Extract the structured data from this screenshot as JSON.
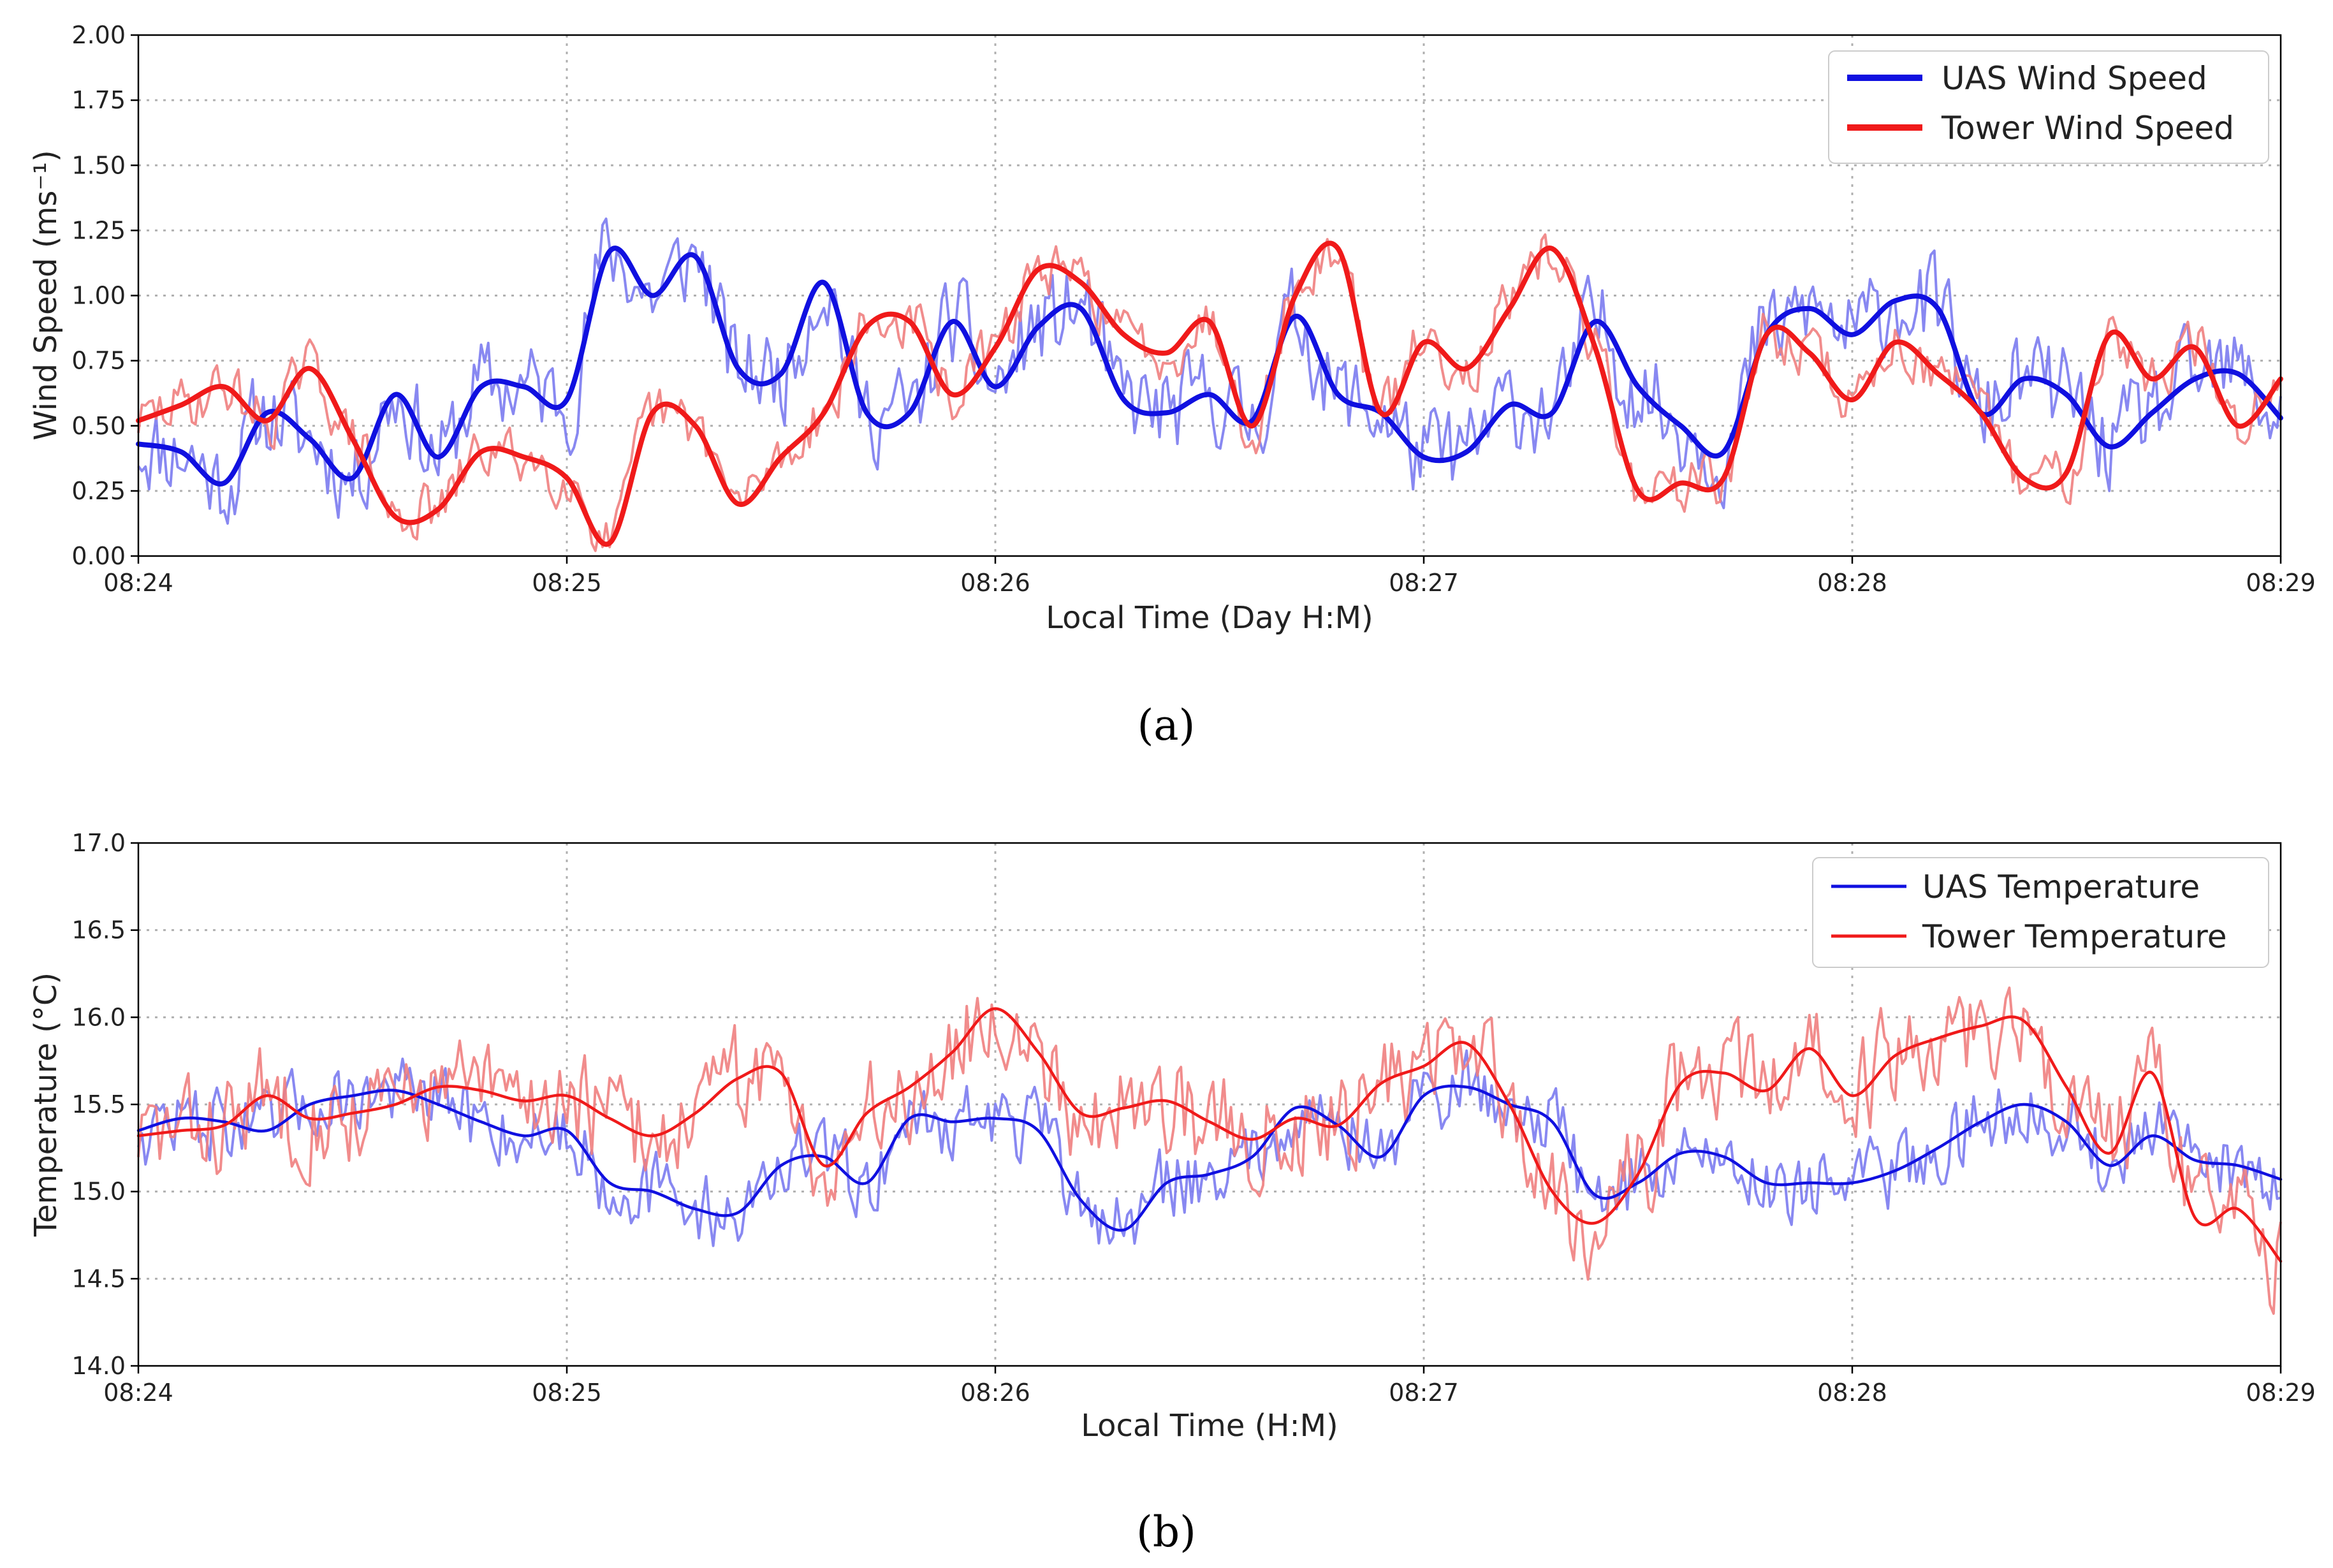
{
  "colors": {
    "uas_raw": "#7b7bf0",
    "uas_smooth": "#1010e0",
    "tower_raw": "#f08080",
    "tower_smooth": "#f01a1a",
    "grid": "#b0b0b0"
  },
  "chart_data": [
    {
      "id": "a",
      "type": "line",
      "caption": "(a)",
      "xlabel": "Local Time (Day H:M)",
      "ylabel": "Wind Speed (ms⁻¹)",
      "xlim": [
        0,
        5
      ],
      "ylim": [
        0,
        2
      ],
      "xticks": [
        0,
        1,
        2,
        3,
        4,
        5
      ],
      "xtick_labels": [
        "08:24",
        "08:25",
        "08:26",
        "08:27",
        "08:28",
        "08:29"
      ],
      "yticks": [
        0,
        0.25,
        0.5,
        0.75,
        1.0,
        1.25,
        1.5,
        1.75,
        2.0
      ],
      "ytick_labels": [
        "0.00",
        "0.25",
        "0.50",
        "0.75",
        "1.00",
        "1.25",
        "1.50",
        "1.75",
        "2.00"
      ],
      "grid": true,
      "legend_position": "top-right",
      "legend": [
        "UAS Wind Speed",
        "Tower Wind Speed"
      ],
      "x_unit": "minutes after 08:24",
      "series": [
        {
          "name": "UAS Wind Speed",
          "style": "smoothed",
          "x": [
            0,
            0.1,
            0.2,
            0.3,
            0.4,
            0.5,
            0.6,
            0.7,
            0.8,
            0.9,
            1.0,
            1.1,
            1.2,
            1.3,
            1.4,
            1.5,
            1.6,
            1.7,
            1.8,
            1.9,
            2.0,
            2.1,
            2.2,
            2.3,
            2.4,
            2.5,
            2.6,
            2.7,
            2.8,
            2.9,
            3.0,
            3.1,
            3.2,
            3.3,
            3.4,
            3.5,
            3.6,
            3.7,
            3.8,
            3.9,
            4.0,
            4.1,
            4.2,
            4.3,
            4.4,
            4.5,
            4.6,
            4.7,
            4.8,
            4.9,
            5.0
          ],
          "values": [
            0.43,
            0.4,
            0.28,
            0.55,
            0.45,
            0.3,
            0.62,
            0.38,
            0.65,
            0.65,
            0.6,
            1.17,
            1.0,
            1.15,
            0.72,
            0.7,
            1.05,
            0.55,
            0.55,
            0.9,
            0.65,
            0.88,
            0.95,
            0.6,
            0.55,
            0.62,
            0.52,
            0.92,
            0.62,
            0.55,
            0.38,
            0.4,
            0.58,
            0.55,
            0.9,
            0.65,
            0.5,
            0.4,
            0.85,
            0.95,
            0.85,
            0.98,
            0.95,
            0.55,
            0.68,
            0.62,
            0.42,
            0.55,
            0.68,
            0.7,
            0.53
          ]
        },
        {
          "name": "Tower Wind Speed",
          "style": "smoothed",
          "x": [
            0,
            0.1,
            0.2,
            0.3,
            0.4,
            0.5,
            0.6,
            0.7,
            0.8,
            0.9,
            1.0,
            1.1,
            1.2,
            1.3,
            1.4,
            1.5,
            1.6,
            1.7,
            1.8,
            1.9,
            2.0,
            2.1,
            2.2,
            2.3,
            2.4,
            2.5,
            2.6,
            2.7,
            2.8,
            2.9,
            3.0,
            3.1,
            3.2,
            3.3,
            3.4,
            3.5,
            3.6,
            3.7,
            3.8,
            3.9,
            4.0,
            4.1,
            4.2,
            4.3,
            4.4,
            4.5,
            4.6,
            4.7,
            4.8,
            4.9,
            5.0
          ],
          "values": [
            0.52,
            0.58,
            0.65,
            0.52,
            0.72,
            0.45,
            0.15,
            0.18,
            0.4,
            0.38,
            0.3,
            0.05,
            0.55,
            0.5,
            0.2,
            0.38,
            0.55,
            0.88,
            0.9,
            0.62,
            0.8,
            1.1,
            1.05,
            0.85,
            0.78,
            0.9,
            0.5,
            1.0,
            1.18,
            0.55,
            0.82,
            0.72,
            0.95,
            1.18,
            0.8,
            0.25,
            0.28,
            0.3,
            0.85,
            0.78,
            0.6,
            0.82,
            0.7,
            0.55,
            0.3,
            0.32,
            0.85,
            0.68,
            0.8,
            0.5,
            0.68
          ]
        }
      ]
    },
    {
      "id": "b",
      "type": "line",
      "caption": "(b)",
      "xlabel": "Local Time (H:M)",
      "ylabel": "Temperature (°C)",
      "xlim": [
        0,
        5
      ],
      "ylim": [
        14,
        17
      ],
      "xticks": [
        0,
        1,
        2,
        3,
        4,
        5
      ],
      "xtick_labels": [
        "08:24",
        "08:25",
        "08:26",
        "08:27",
        "08:28",
        "08:29"
      ],
      "yticks": [
        14.0,
        14.5,
        15.0,
        15.5,
        16.0,
        16.5,
        17.0
      ],
      "ytick_labels": [
        "14.0",
        "14.5",
        "15.0",
        "15.5",
        "16.0",
        "16.5",
        "17.0"
      ],
      "grid": true,
      "legend_position": "top-right",
      "legend": [
        "UAS Temperature",
        "Tower Temperature"
      ],
      "x_unit": "minutes after 08:24",
      "series": [
        {
          "name": "UAS Temperature",
          "style": "smoothed",
          "x": [
            0,
            0.1,
            0.2,
            0.3,
            0.4,
            0.5,
            0.6,
            0.7,
            0.8,
            0.9,
            1.0,
            1.1,
            1.2,
            1.3,
            1.4,
            1.5,
            1.6,
            1.7,
            1.8,
            1.9,
            2.0,
            2.1,
            2.2,
            2.3,
            2.4,
            2.5,
            2.6,
            2.7,
            2.8,
            2.9,
            3.0,
            3.1,
            3.2,
            3.3,
            3.4,
            3.5,
            3.6,
            3.7,
            3.8,
            3.9,
            4.0,
            4.1,
            4.2,
            4.3,
            4.4,
            4.5,
            4.6,
            4.7,
            4.8,
            4.9,
            5.0
          ],
          "values": [
            15.35,
            15.42,
            15.4,
            15.35,
            15.5,
            15.55,
            15.58,
            15.5,
            15.4,
            15.32,
            15.35,
            15.05,
            15.0,
            14.9,
            14.88,
            15.15,
            15.2,
            15.05,
            15.42,
            15.4,
            15.42,
            15.35,
            14.95,
            14.78,
            15.05,
            15.1,
            15.2,
            15.48,
            15.38,
            15.2,
            15.55,
            15.6,
            15.5,
            15.4,
            14.98,
            15.05,
            15.22,
            15.2,
            15.05,
            15.05,
            15.05,
            15.12,
            15.25,
            15.4,
            15.5,
            15.4,
            15.15,
            15.32,
            15.18,
            15.15,
            15.07
          ]
        },
        {
          "name": "Tower Temperature",
          "style": "smoothed",
          "x": [
            0,
            0.1,
            0.2,
            0.3,
            0.4,
            0.5,
            0.6,
            0.7,
            0.8,
            0.9,
            1.0,
            1.1,
            1.2,
            1.3,
            1.4,
            1.5,
            1.6,
            1.7,
            1.8,
            1.9,
            2.0,
            2.1,
            2.2,
            2.3,
            2.4,
            2.5,
            2.6,
            2.7,
            2.8,
            2.9,
            3.0,
            3.1,
            3.2,
            3.3,
            3.4,
            3.5,
            3.6,
            3.7,
            3.8,
            3.9,
            4.0,
            4.1,
            4.2,
            4.3,
            4.4,
            4.5,
            4.6,
            4.7,
            4.8,
            4.9,
            5.0
          ],
          "values": [
            15.32,
            15.35,
            15.38,
            15.55,
            15.42,
            15.45,
            15.5,
            15.6,
            15.58,
            15.52,
            15.55,
            15.42,
            15.32,
            15.45,
            15.65,
            15.68,
            15.15,
            15.45,
            15.6,
            15.8,
            16.05,
            15.8,
            15.45,
            15.48,
            15.52,
            15.4,
            15.3,
            15.42,
            15.38,
            15.62,
            15.72,
            15.85,
            15.5,
            15.0,
            14.82,
            15.1,
            15.62,
            15.68,
            15.58,
            15.82,
            15.55,
            15.78,
            15.88,
            15.95,
            15.98,
            15.6,
            15.22,
            15.68,
            14.85,
            14.9,
            14.6
          ]
        }
      ]
    }
  ]
}
